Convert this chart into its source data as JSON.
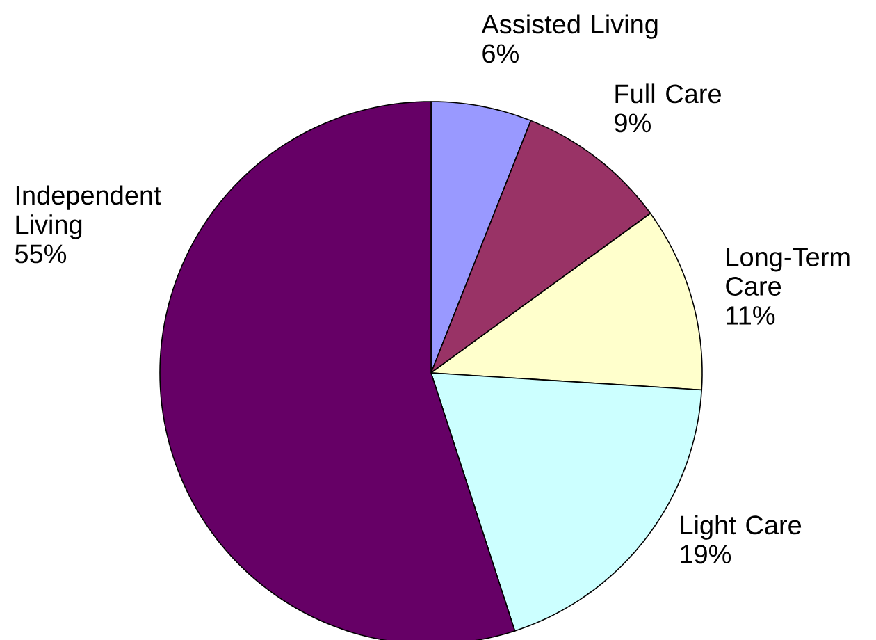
{
  "chart_data": {
    "type": "pie",
    "categories": [
      "Assisted Living",
      "Full Care",
      "Long-Term Care",
      "Light Care",
      "Independent Living"
    ],
    "values": [
      6,
      9,
      11,
      19,
      55
    ],
    "value_labels": [
      "6%",
      "9%",
      "11%",
      "19%",
      "55%"
    ],
    "colors": [
      "#9999ff",
      "#993366",
      "#ffffcc",
      "#ccffff",
      "#660066"
    ],
    "legend": false
  }
}
